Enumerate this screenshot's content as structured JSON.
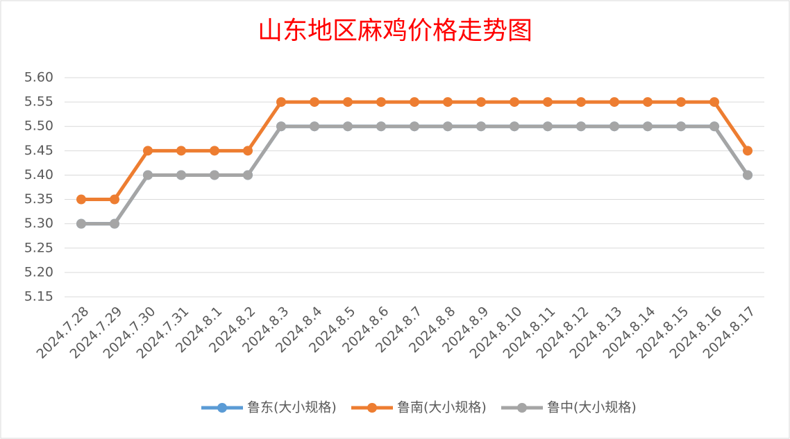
{
  "chart_data": {
    "type": "line",
    "title": "山东地区麻鸡价格走势图",
    "categories": [
      "2024.7.28",
      "2024.7.29",
      "2024.7.30",
      "2024.7.31",
      "2024.8.1",
      "2024.8.2",
      "2024.8.3",
      "2024.8.4",
      "2024.8.5",
      "2024.8.6",
      "2024.8.7",
      "2024.8.8",
      "2024.8.9",
      "2024.8.10",
      "2024.8.11",
      "2024.8.12",
      "2024.8.13",
      "2024.8.14",
      "2024.8.15",
      "2024.8.16",
      "2024.8.17"
    ],
    "series": [
      {
        "name": "鲁东(大小规格)",
        "color": "#5b9bd5",
        "values": [
          5.3,
          5.3,
          5.4,
          5.4,
          5.4,
          5.4,
          5.5,
          5.5,
          5.5,
          5.5,
          5.5,
          5.5,
          5.5,
          5.5,
          5.5,
          5.5,
          5.5,
          5.5,
          5.5,
          5.5,
          5.4
        ]
      },
      {
        "name": "鲁南(大小规格)",
        "color": "#ed7d31",
        "values": [
          5.35,
          5.35,
          5.45,
          5.45,
          5.45,
          5.45,
          5.55,
          5.55,
          5.55,
          5.55,
          5.55,
          5.55,
          5.55,
          5.55,
          5.55,
          5.55,
          5.55,
          5.55,
          5.55,
          5.55,
          5.45
        ]
      },
      {
        "name": "鲁中(大小规格)",
        "color": "#a5a5a5",
        "values": [
          5.3,
          5.3,
          5.4,
          5.4,
          5.4,
          5.4,
          5.5,
          5.5,
          5.5,
          5.5,
          5.5,
          5.5,
          5.5,
          5.5,
          5.5,
          5.5,
          5.5,
          5.5,
          5.5,
          5.5,
          5.4
        ]
      }
    ],
    "ylim": [
      5.15,
      5.6
    ],
    "yticks": [
      {
        "value": 5.15,
        "label": "5.15"
      },
      {
        "value": 5.2,
        "label": "5.20"
      },
      {
        "value": 5.25,
        "label": "5.25"
      },
      {
        "value": 5.3,
        "label": "5.30"
      },
      {
        "value": 5.35,
        "label": "5.35"
      },
      {
        "value": 5.4,
        "label": "5.40"
      },
      {
        "value": 5.45,
        "label": "5.45"
      },
      {
        "value": 5.5,
        "label": "5.50"
      },
      {
        "value": 5.55,
        "label": "5.55"
      },
      {
        "value": 5.6,
        "label": "5.60"
      }
    ],
    "grid": true,
    "legend": "bottom"
  }
}
